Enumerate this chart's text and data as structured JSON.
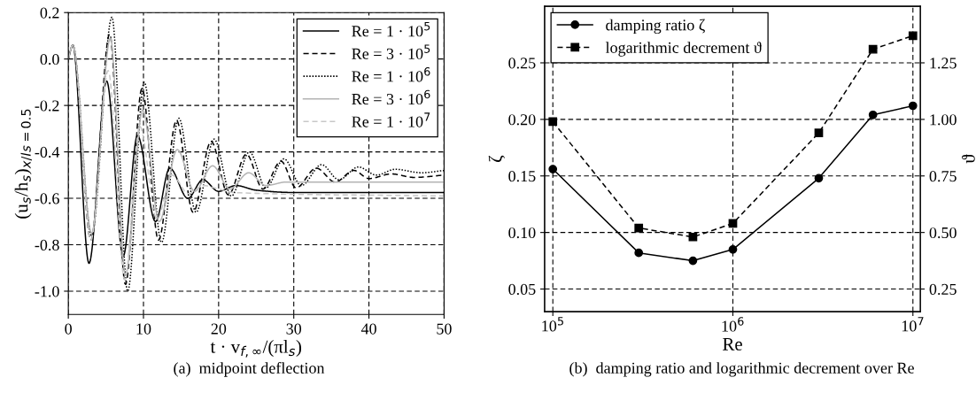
{
  "chart_data": [
    {
      "type": "line",
      "xlabel": "t · v$_{f,∞}$/(πl$_{s}$)",
      "ylabel": "(u$_{s}$/h$_{s}$)$_{x/l}$$_{s}$$_{=0.5}$",
      "annotations": [
        "(a)  midpoint deflection"
      ],
      "xlim": [
        0,
        50
      ],
      "xticks": [
        0,
        10,
        20,
        30,
        40,
        50
      ],
      "ylim": [
        -1.1,
        0.2
      ],
      "yticks": [
        {
          "value": -1.0,
          "label": "-1.0"
        },
        {
          "value": -0.8,
          "label": "-0.8"
        },
        {
          "value": -0.6,
          "label": "-0.6"
        },
        {
          "value": -0.4,
          "label": "-0.4"
        },
        {
          "value": -0.2,
          "label": "-0.2"
        },
        {
          "value": 0.0,
          "label": "0.0"
        },
        {
          "value": 0.2,
          "label": "0.2"
        }
      ],
      "grid": true,
      "legend": "top right",
      "marker": "none",
      "series": [
        {
          "name": "Re = 1 · 10$^{5}$",
          "color": "#000000",
          "line_style": "solid",
          "x": [
            0,
            0.6,
            2.75,
            5.1,
            7.3,
            9.2,
            11.6,
            13.5,
            15.9,
            17.9,
            20.0,
            22.3,
            25,
            30,
            50
          ],
          "values": [
            0,
            0.06,
            -0.88,
            -0.095,
            -0.85,
            -0.33,
            -0.7,
            -0.47,
            -0.6,
            -0.52,
            -0.57,
            -0.545,
            -0.565,
            -0.575,
            -0.575
          ]
        },
        {
          "name": "Re = 3 · 10$^{5}$",
          "color": "#000000",
          "line_style": "dashed",
          "x": [
            0,
            0.6,
            3.0,
            5.5,
            7.6,
            9.8,
            12.0,
            14.4,
            16.6,
            19.0,
            21.3,
            23.7,
            25.9,
            28.3,
            30.3,
            33,
            35.5,
            38,
            40,
            43,
            46,
            50
          ],
          "values": [
            0,
            0.06,
            -0.78,
            0.108,
            -0.97,
            -0.127,
            -0.78,
            -0.265,
            -0.66,
            -0.355,
            -0.585,
            -0.41,
            -0.56,
            -0.44,
            -0.555,
            -0.47,
            -0.53,
            -0.48,
            -0.515,
            -0.495,
            -0.51,
            -0.5
          ]
        },
        {
          "name": "Re = 1 · 10$^{6}$",
          "color": "#000000",
          "line_style": "dotted",
          "x": [
            0,
            0.6,
            3.1,
            5.8,
            7.9,
            10.1,
            12.4,
            14.7,
            17.0,
            19.4,
            21.7,
            24.1,
            26.3,
            28.7,
            31,
            33.7,
            36,
            38.6,
            41,
            43.5,
            47,
            50
          ],
          "values": [
            0,
            0.06,
            -0.76,
            0.18,
            -1.0,
            -0.1,
            -0.79,
            -0.255,
            -0.66,
            -0.345,
            -0.59,
            -0.4,
            -0.555,
            -0.43,
            -0.545,
            -0.455,
            -0.52,
            -0.465,
            -0.5,
            -0.475,
            -0.49,
            -0.48
          ]
        },
        {
          "name": "Re = 3 · 10$^{6}$",
          "color": "#b3b3b3",
          "line_style": "solid",
          "x": [
            0,
            0.6,
            3.1,
            5.6,
            7.6,
            9.9,
            12.1,
            14.5,
            16.8,
            19.2,
            21.5,
            24,
            26.3,
            29,
            50
          ],
          "values": [
            0,
            0.06,
            -0.75,
            0.09,
            -0.93,
            -0.22,
            -0.7,
            -0.39,
            -0.57,
            -0.46,
            -0.56,
            -0.49,
            -0.545,
            -0.53,
            -0.53
          ]
        },
        {
          "name": "Re = 1 · 10$^{7}$",
          "color": "#c8c8c8",
          "line_style": "dashed",
          "x": [
            0,
            0.6,
            3.0,
            5.3,
            7.5,
            9.5,
            11.8,
            13.8,
            16.0,
            18.0,
            20.0,
            22,
            50
          ],
          "values": [
            0,
            0.06,
            -0.78,
            -0.05,
            -0.95,
            -0.29,
            -0.69,
            -0.5,
            -0.58,
            -0.545,
            -0.56,
            -0.575,
            -0.59
          ]
        }
      ]
    },
    {
      "type": "line",
      "xlabel": "Re",
      "ylabel": "ζ",
      "y2label": "ϑ",
      "annotations": [
        "(b)  damping ratio and logarithmic decrement over Re"
      ],
      "log": "x",
      "xlim": [
        90000,
        11000000
      ],
      "xticks": [
        {
          "value": 100000,
          "label": "10$^{5}$"
        },
        {
          "value": 1000000,
          "label": "10$^{6}$"
        },
        {
          "value": 10000000,
          "label": "10$^{7}$"
        }
      ],
      "ylim": [
        0.03,
        0.3
      ],
      "yticks": [
        0.05,
        {
          "value": 0.1,
          "label": "0.10"
        },
        0.15,
        {
          "value": 0.2,
          "label": "0.20"
        },
        0.25
      ],
      "y2lim": [
        0.15,
        1.5
      ],
      "y2ticks": [
        0.25,
        {
          "value": 0.5,
          "label": "0.50"
        },
        0.75,
        {
          "value": 1.0,
          "label": "1.00"
        },
        1.25
      ],
      "grid": true,
      "legend": "top left",
      "x": [
        100000,
        300000,
        600000,
        1000000,
        3000000,
        6000000,
        10000000
      ],
      "series": [
        {
          "name": "damping ratio ζ",
          "color": "#000000",
          "line_style": "solid",
          "marker": "circle",
          "values": [
            0.156,
            0.082,
            0.075,
            0.085,
            0.148,
            0.204,
            0.212
          ]
        },
        {
          "name": "logarithmic decrement ϑ",
          "color": "#000000",
          "line_style": "dashed",
          "marker": "square",
          "axis": "y2",
          "values": [
            0.99,
            0.52,
            0.48,
            0.54,
            0.94,
            1.31,
            1.37
          ]
        }
      ]
    }
  ]
}
